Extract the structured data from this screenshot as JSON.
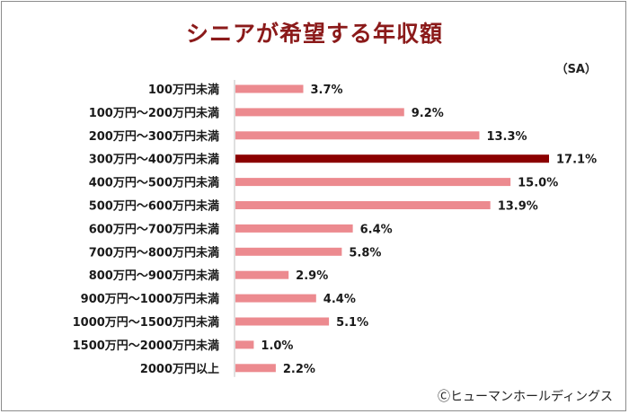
{
  "header": {
    "title": "シニアが希望する年収額",
    "sa_label": "（SA）",
    "credit": "Ⓒヒューマンホールディングス"
  },
  "colors": {
    "bar": "#ec8a8f",
    "highlight": "#8b0000",
    "title": "#8b1a1a"
  },
  "chart_data": {
    "type": "bar",
    "orientation": "horizontal",
    "categories": [
      "100万円未満",
      "100万円～200万円未満",
      "200万円～300万円未満",
      "300万円～400万円未満",
      "400万円～500万円未満",
      "500万円～600万円未満",
      "600万円～700万円未満",
      "700万円～800万円未満",
      "800万円～900万円未満",
      "900万円～1000万円未満",
      "1000万円～1500万円未満",
      "1500万円～2000万円未満",
      "2000万円以上"
    ],
    "values": [
      3.7,
      9.2,
      13.3,
      17.1,
      15.0,
      13.9,
      6.4,
      5.8,
      2.9,
      4.4,
      5.1,
      1.0,
      2.2
    ],
    "value_labels": [
      "3.7%",
      "9.2%",
      "13.3%",
      "17.1%",
      "15.0%",
      "13.9%",
      "6.4%",
      "5.8%",
      "2.9%",
      "4.4%",
      "5.1%",
      "1.0%",
      "2.2%"
    ],
    "highlight_index": 3,
    "xlim": [
      0,
      17.1
    ],
    "title": "シニアが希望する年収額"
  }
}
